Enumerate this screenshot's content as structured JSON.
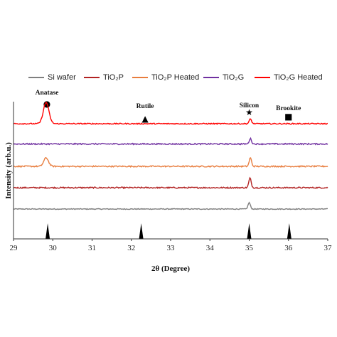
{
  "chart_data": {
    "type": "line",
    "xlabel": "2θ (Degree)",
    "ylabel": "Intensity (arb.u.)",
    "xlim": [
      29,
      37
    ],
    "x_ticks": [
      29,
      30,
      31,
      32,
      33,
      34,
      35,
      36,
      37
    ],
    "grid": false,
    "legend_position": "top",
    "series": [
      {
        "name": "Si wafer",
        "color": "#7f7f7f",
        "baseline": 0.2,
        "noise": 0.02,
        "peaks": [
          {
            "x": 35.0,
            "height": 0.3,
            "width": 0.03
          }
        ]
      },
      {
        "name": "TiO₂P",
        "color": "#b22222",
        "baseline": 1.2,
        "noise": 0.03,
        "peaks": [
          {
            "x": 35.02,
            "height": 0.45,
            "width": 0.03
          }
        ]
      },
      {
        "name": "TiO₂P Heated",
        "color": "#e87d3e",
        "baseline": 2.2,
        "noise": 0.03,
        "peaks": [
          {
            "x": 29.83,
            "height": 0.4,
            "width": 0.06
          },
          {
            "x": 35.03,
            "height": 0.4,
            "width": 0.03
          }
        ]
      },
      {
        "name": "TiO₂G",
        "color": "#7030a0",
        "baseline": 3.25,
        "noise": 0.03,
        "peaks": [
          {
            "x": 35.03,
            "height": 0.25,
            "width": 0.03
          }
        ]
      },
      {
        "name": "TiO₂G Heated",
        "color": "#ff0000",
        "baseline": 4.2,
        "noise": 0.025,
        "peaks": [
          {
            "x": 29.83,
            "height": 1.0,
            "width": 0.07
          },
          {
            "x": 35.03,
            "height": 0.22,
            "width": 0.03
          }
        ]
      }
    ],
    "reference_peaks": [
      {
        "x": 29.87,
        "phase": "Anatase"
      },
      {
        "x": 32.25,
        "phase": "Rutile"
      },
      {
        "x": 35.0,
        "phase": "Silicon"
      },
      {
        "x": 36.02,
        "phase": "Brookite"
      }
    ],
    "annotations": [
      {
        "label": "Anatase",
        "symbol": "●",
        "x": 29.85
      },
      {
        "label": "Rutile",
        "symbol": "▲",
        "x": 32.35
      },
      {
        "label": "Silicon",
        "symbol": "★",
        "x": 35.0
      },
      {
        "label": "Brookite",
        "symbol": "■",
        "x": 36.0
      }
    ]
  }
}
